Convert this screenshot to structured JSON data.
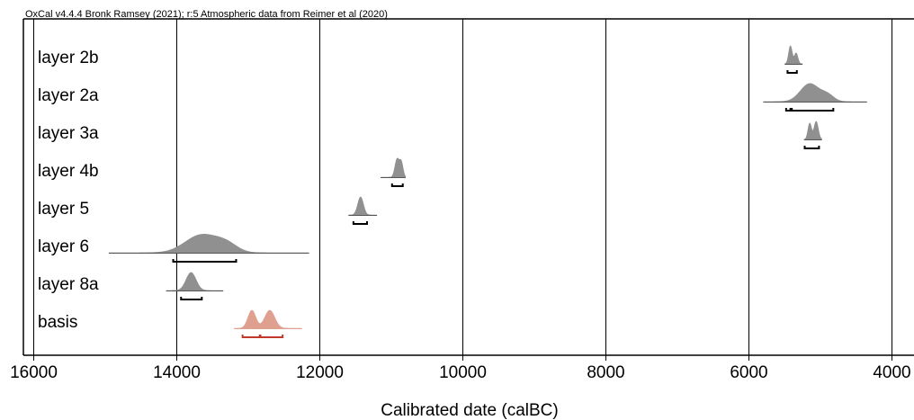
{
  "header": "OxCal v4.4.4 Bronk Ramsey (2021); r:5 Atmospheric data from Reimer et al (2020)",
  "chart_data": {
    "type": "area",
    "title": "",
    "xlabel": "Calibrated date (calBC)",
    "ylabel": "",
    "xlim": [
      16000,
      4000
    ],
    "x_ticks": [
      16000,
      14000,
      12000,
      10000,
      8000,
      6000,
      4000
    ],
    "x_tick_labels": [
      "16000",
      "14000",
      "12000",
      "10000",
      "8000",
      "6000",
      "4000"
    ],
    "grid": true,
    "colors": {
      "normal": "#909090",
      "highlight": "#e0a090",
      "highlight_range": "#c0392b"
    },
    "series": [
      {
        "name": "layer 2b",
        "highlight": false,
        "line_from": 5500,
        "line_to": 5250,
        "peaks": [
          {
            "center": 5420,
            "sigma": 25,
            "amp": 1.0
          },
          {
            "center": 5340,
            "sigma": 25,
            "amp": 0.6
          }
        ],
        "ranges": [
          [
            5460,
            5330
          ]
        ]
      },
      {
        "name": "layer 2a",
        "highlight": false,
        "line_from": 5800,
        "line_to": 4350,
        "peaks": [
          {
            "center": 5150,
            "sigma": 130,
            "amp": 1.0
          },
          {
            "center": 4900,
            "sigma": 90,
            "amp": 0.35
          }
        ],
        "ranges": [
          [
            5480,
            5420
          ],
          [
            5400,
            4820
          ]
        ]
      },
      {
        "name": "layer 3a",
        "highlight": false,
        "line_from": 5230,
        "line_to": 4980,
        "peaks": [
          {
            "center": 5150,
            "sigma": 25,
            "amp": 0.9
          },
          {
            "center": 5060,
            "sigma": 30,
            "amp": 1.0
          }
        ],
        "ranges": [
          [
            5220,
            5020
          ]
        ]
      },
      {
        "name": "layer 4b",
        "highlight": false,
        "line_from": 11150,
        "line_to": 10800,
        "peaks": [
          {
            "center": 10920,
            "sigma": 30,
            "amp": 1.0
          },
          {
            "center": 10860,
            "sigma": 25,
            "amp": 0.8
          }
        ],
        "ranges": [
          [
            10990,
            10840
          ]
        ]
      },
      {
        "name": "layer 5",
        "highlight": false,
        "line_from": 11600,
        "line_to": 11200,
        "peaks": [
          {
            "center": 11430,
            "sigma": 40,
            "amp": 1.0
          }
        ],
        "ranges": [
          [
            11530,
            11340
          ]
        ]
      },
      {
        "name": "layer 6",
        "highlight": false,
        "line_from": 14950,
        "line_to": 12150,
        "peaks": [
          {
            "center": 13650,
            "sigma": 230,
            "amp": 1.0
          },
          {
            "center": 13300,
            "sigma": 150,
            "amp": 0.4
          }
        ],
        "ranges": [
          [
            14050,
            13170
          ]
        ]
      },
      {
        "name": "layer 8a",
        "highlight": false,
        "line_from": 14150,
        "line_to": 13350,
        "peaks": [
          {
            "center": 13800,
            "sigma": 70,
            "amp": 1.0
          }
        ],
        "ranges": [
          [
            13940,
            13650
          ]
        ]
      },
      {
        "name": "basis",
        "highlight": true,
        "line_from": 13200,
        "line_to": 12250,
        "peaks": [
          {
            "center": 12950,
            "sigma": 55,
            "amp": 1.0
          },
          {
            "center": 12700,
            "sigma": 70,
            "amp": 1.0
          }
        ],
        "ranges": [
          [
            13080,
            12840
          ],
          [
            12830,
            12520
          ]
        ]
      }
    ]
  }
}
